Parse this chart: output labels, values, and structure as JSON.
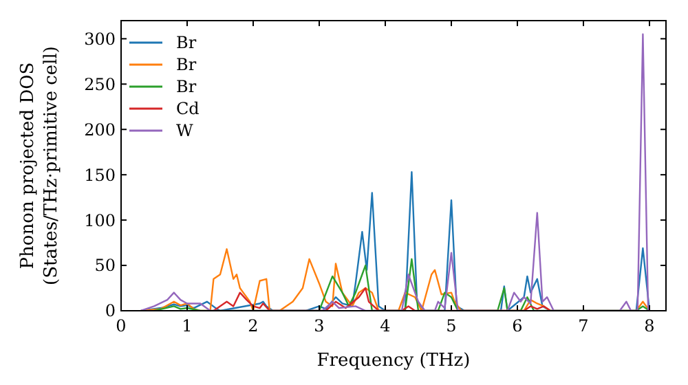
{
  "chart_data": {
    "type": "line",
    "xlabel": "Frequency (THz)",
    "ylabel": "Phonon projected DOS\n(States/THz·primitive cell)",
    "xlim": [
      0,
      8.25
    ],
    "ylim": [
      0,
      320
    ],
    "xticks": [
      0,
      1,
      2,
      3,
      4,
      5,
      6,
      7,
      8
    ],
    "yticks": [
      0,
      50,
      100,
      150,
      200,
      250,
      300
    ],
    "grid": false,
    "legend": "top left",
    "marker": "none",
    "line_style": "solid",
    "series": [
      {
        "name": "Br",
        "color": "#1f77b4",
        "x": [
          0.3,
          0.6,
          0.8,
          0.9,
          1.0,
          1.1,
          1.3,
          1.45,
          1.5,
          2.1,
          2.15,
          2.2,
          2.3,
          2.8,
          3.0,
          3.1,
          3.25,
          3.35,
          3.5,
          3.55,
          3.65,
          3.72,
          3.8,
          3.9,
          4.0,
          4.3,
          4.4,
          4.48,
          4.6,
          4.9,
          5.0,
          5.08,
          5.2,
          5.75,
          5.8,
          5.85,
          6.1,
          6.15,
          6.2,
          6.3,
          6.38,
          6.5,
          7.8,
          7.9,
          8.0
        ],
        "values": [
          0,
          3,
          7,
          5,
          6,
          3,
          10,
          2,
          0,
          8,
          10,
          5,
          0,
          0,
          5,
          2,
          15,
          8,
          5,
          30,
          87,
          45,
          130,
          5,
          0,
          0,
          153,
          10,
          0,
          0,
          122,
          5,
          0,
          0,
          27,
          0,
          15,
          38,
          20,
          35,
          5,
          0,
          0,
          69,
          0
        ]
      },
      {
        "name": "Br",
        "color": "#ff7f0e",
        "x": [
          0.3,
          0.6,
          0.8,
          0.9,
          1.0,
          1.1,
          1.2,
          1.35,
          1.4,
          1.5,
          1.6,
          1.7,
          1.75,
          1.8,
          1.85,
          1.95,
          2.0,
          2.1,
          2.2,
          2.25,
          2.4,
          2.6,
          2.75,
          2.85,
          3.0,
          3.1,
          3.2,
          3.25,
          3.35,
          3.5,
          3.6,
          3.7,
          3.8,
          3.9,
          4.2,
          4.3,
          4.45,
          4.55,
          4.7,
          4.75,
          4.85,
          5.0,
          5.05,
          5.15,
          6.1,
          6.2,
          6.3,
          6.4,
          6.5,
          7.8,
          7.9,
          8.0
        ],
        "values": [
          0,
          2,
          10,
          6,
          8,
          2,
          0,
          0,
          35,
          40,
          68,
          35,
          40,
          25,
          20,
          10,
          0,
          33,
          35,
          0,
          0,
          10,
          25,
          57,
          30,
          10,
          5,
          52,
          20,
          5,
          20,
          25,
          20,
          0,
          0,
          20,
          15,
          0,
          40,
          45,
          18,
          20,
          10,
          0,
          0,
          12,
          8,
          5,
          0,
          0,
          10,
          0
        ]
      },
      {
        "name": "Br",
        "color": "#2ca02c",
        "x": [
          0.5,
          0.8,
          0.9,
          1.0,
          1.2,
          3.0,
          3.2,
          3.35,
          3.45,
          3.55,
          3.65,
          3.7,
          3.8,
          4.3,
          4.4,
          4.5,
          4.8,
          4.9,
          5.0,
          5.1,
          5.7,
          5.8,
          5.85,
          6.05,
          6.15,
          6.25,
          7.8,
          7.9,
          8.0
        ],
        "values": [
          0,
          5,
          2,
          3,
          0,
          0,
          38,
          20,
          5,
          20,
          40,
          50,
          0,
          0,
          57,
          0,
          0,
          20,
          15,
          0,
          0,
          25,
          0,
          0,
          15,
          0,
          0,
          5,
          0
        ]
      },
      {
        "name": "Cd",
        "color": "#d62728",
        "x": [
          1.4,
          1.6,
          1.7,
          1.8,
          1.9,
          2.0,
          2.1,
          2.15,
          2.25,
          3.1,
          3.25,
          3.4,
          3.6,
          3.7,
          3.75,
          3.9,
          4.25,
          4.35,
          4.45,
          6.1,
          6.2,
          6.3,
          6.4,
          6.5
        ],
        "values": [
          0,
          10,
          5,
          20,
          12,
          5,
          3,
          8,
          0,
          0,
          10,
          3,
          15,
          25,
          10,
          0,
          0,
          5,
          0,
          0,
          5,
          2,
          5,
          0
        ]
      },
      {
        "name": "W",
        "color": "#9467bd",
        "x": [
          0.3,
          0.5,
          0.7,
          0.8,
          0.9,
          1.0,
          1.2,
          1.35,
          3.05,
          3.2,
          3.3,
          3.55,
          3.7,
          4.25,
          4.35,
          4.5,
          4.6,
          4.75,
          4.8,
          4.9,
          5.0,
          5.1,
          5.85,
          5.95,
          6.05,
          6.1,
          6.2,
          6.3,
          6.38,
          6.45,
          6.55,
          7.55,
          7.65,
          7.72,
          7.82,
          7.9,
          7.98
        ],
        "values": [
          0,
          5,
          12,
          20,
          12,
          8,
          8,
          0,
          0,
          10,
          3,
          5,
          0,
          0,
          40,
          10,
          0,
          0,
          10,
          3,
          64,
          0,
          0,
          20,
          10,
          15,
          8,
          108,
          10,
          15,
          0,
          0,
          10,
          0,
          0,
          305,
          0
        ]
      }
    ]
  }
}
